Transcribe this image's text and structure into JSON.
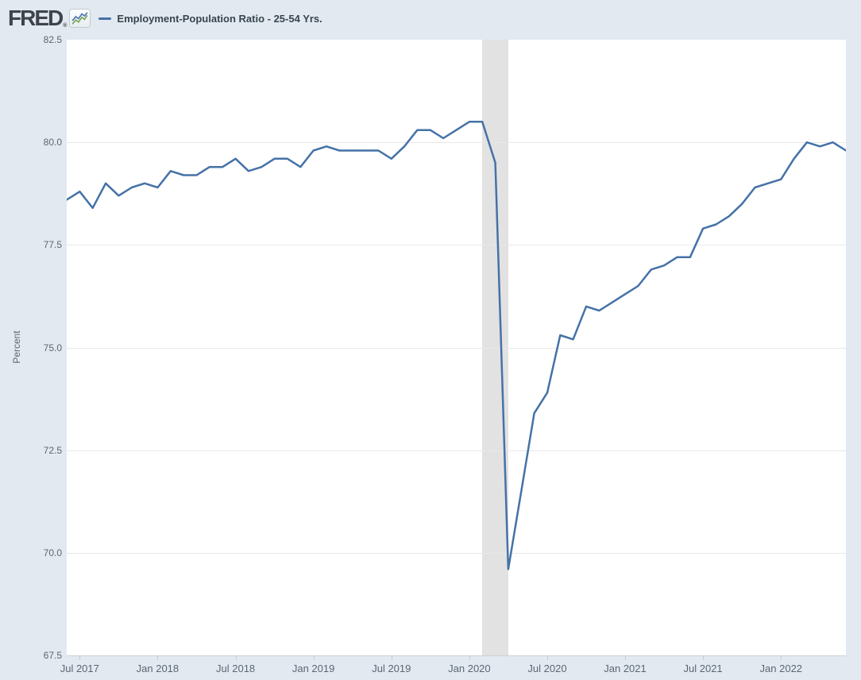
{
  "header": {
    "logo_text": "FRED",
    "logo_reg_mark": "®",
    "logo_icon": "fred-sparkline-icon",
    "legend": {
      "marker": "blue-line-dash",
      "label": "Employment-Population Ratio - 25-54 Yrs."
    }
  },
  "colors": {
    "page_background": "#e3e9f0",
    "plot_background": "#ffffff",
    "series_line": "#4572a7",
    "recession_band": "#e2e2e2",
    "gridline": "#e8e8e8",
    "axis_text": "#5b6673",
    "legend_text": "#36454f",
    "icon_line_blue": "#4a78b3",
    "icon_line_green": "#79a75d"
  },
  "chart_data": {
    "type": "line",
    "title": "Employment-Population Ratio - 25-54 Yrs.",
    "ylabel": "Percent",
    "xlabel": "",
    "ylim": [
      67.5,
      82.5
    ],
    "grid": "horizontal",
    "legend_position": "header-top-left",
    "y_ticks": [
      82.5,
      80.0,
      77.5,
      75.0,
      72.5,
      70.0,
      67.5
    ],
    "y_tick_labels": [
      "82.5",
      "80.0",
      "77.5",
      "75.0",
      "72.5",
      "70.0",
      "67.5"
    ],
    "x_tick_labels": [
      "Jul 2017",
      "Jan 2018",
      "Jul 2018",
      "Jan 2019",
      "Jul 2019",
      "Jan 2020",
      "Jul 2020",
      "Jan 2021",
      "Jul 2021",
      "Jan 2022"
    ],
    "recession_shading": {
      "start": "2020-02",
      "end": "2020-04"
    },
    "x": [
      "2017-06",
      "2017-07",
      "2017-08",
      "2017-09",
      "2017-10",
      "2017-11",
      "2017-12",
      "2018-01",
      "2018-02",
      "2018-03",
      "2018-04",
      "2018-05",
      "2018-06",
      "2018-07",
      "2018-08",
      "2018-09",
      "2018-10",
      "2018-11",
      "2018-12",
      "2019-01",
      "2019-02",
      "2019-03",
      "2019-04",
      "2019-05",
      "2019-06",
      "2019-07",
      "2019-08",
      "2019-09",
      "2019-10",
      "2019-11",
      "2019-12",
      "2020-01",
      "2020-02",
      "2020-03",
      "2020-04",
      "2020-05",
      "2020-06",
      "2020-07",
      "2020-08",
      "2020-09",
      "2020-10",
      "2020-11",
      "2020-12",
      "2021-01",
      "2021-02",
      "2021-03",
      "2021-04",
      "2021-05",
      "2021-06",
      "2021-07",
      "2021-08",
      "2021-09",
      "2021-10",
      "2021-11",
      "2021-12",
      "2022-01",
      "2022-02",
      "2022-03",
      "2022-04",
      "2022-05",
      "2022-06"
    ],
    "values": [
      78.6,
      78.8,
      78.4,
      79.0,
      78.7,
      78.9,
      79.0,
      78.9,
      79.3,
      79.2,
      79.2,
      79.4,
      79.4,
      79.6,
      79.3,
      79.4,
      79.6,
      79.6,
      79.4,
      79.8,
      79.9,
      79.8,
      79.8,
      79.8,
      79.8,
      79.6,
      79.9,
      80.3,
      80.3,
      80.1,
      80.3,
      80.5,
      80.5,
      79.5,
      69.6,
      71.5,
      73.4,
      73.9,
      75.3,
      75.2,
      76.0,
      75.9,
      76.1,
      76.3,
      76.5,
      76.9,
      77.0,
      77.2,
      77.2,
      77.9,
      78.0,
      78.2,
      78.5,
      78.9,
      79.0,
      79.1,
      79.6,
      80.0,
      79.9,
      80.0,
      79.8
    ]
  }
}
